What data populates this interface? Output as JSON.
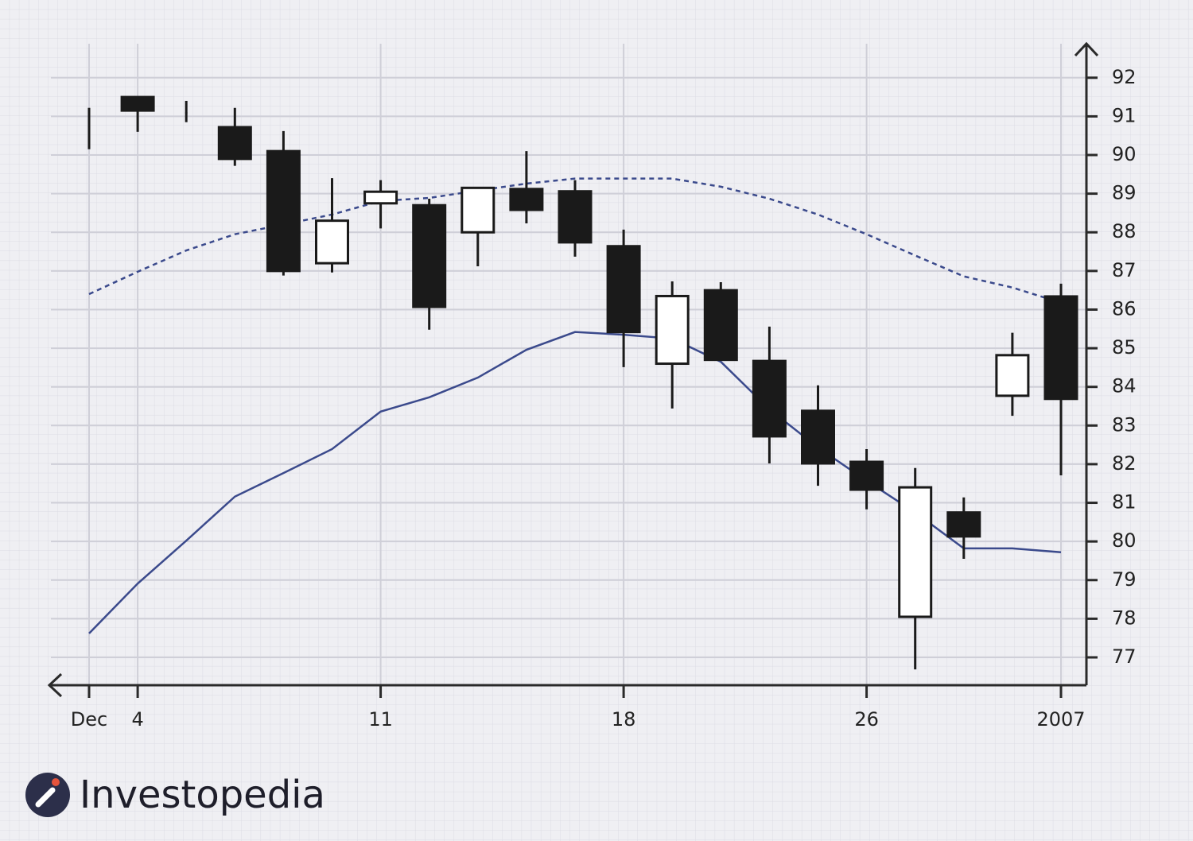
{
  "chart_data": {
    "type": "candlestick",
    "categories": [
      "Dec",
      "4",
      null,
      null,
      null,
      null,
      "11",
      null,
      null,
      null,
      null,
      "18",
      null,
      null,
      null,
      null,
      "26",
      null,
      null,
      null,
      "2007"
    ],
    "open": [
      90.7,
      91.5,
      91.1,
      90.72,
      90.1,
      87.2,
      88.75,
      88.7,
      88.0,
      89.12,
      89.06,
      87.64,
      84.6,
      86.5,
      84.67,
      83.38,
      82.06,
      78.05,
      80.75,
      83.77,
      86.34
    ],
    "high": [
      91.22,
      91.5,
      91.4,
      91.22,
      90.62,
      89.4,
      89.35,
      88.87,
      89.14,
      90.1,
      89.35,
      88.07,
      86.73,
      86.71,
      85.56,
      84.04,
      82.39,
      81.9,
      81.14,
      85.4,
      86.67
    ],
    "low": [
      90.15,
      90.6,
      90.85,
      89.72,
      86.88,
      86.96,
      88.1,
      85.48,
      87.12,
      88.23,
      87.37,
      84.51,
      83.44,
      84.7,
      82.02,
      81.44,
      80.83,
      76.69,
      79.55,
      83.25,
      81.71
    ],
    "close": [
      90.7,
      91.15,
      91.1,
      89.9,
      87.0,
      88.3,
      89.05,
      86.07,
      89.15,
      88.58,
      87.74,
      85.42,
      86.35,
      84.7,
      82.72,
      82.02,
      81.34,
      81.4,
      80.13,
      84.82,
      83.69
    ],
    "up_color": "#ffffff",
    "down_color": "#1a1a1a",
    "overlays": [
      {
        "color": "#3b4a8c",
        "dashed": true,
        "values": [
          86.4,
          86.98,
          87.53,
          87.95,
          88.2,
          88.46,
          88.81,
          88.89,
          89.08,
          89.26,
          89.39,
          89.39,
          89.39,
          89.18,
          88.87,
          88.46,
          87.95,
          87.4,
          86.86,
          86.57,
          86.18
        ]
      },
      {
        "color": "#3b4a8c",
        "dashed": false,
        "values": [
          77.62,
          78.91,
          80.02,
          81.16,
          81.77,
          82.39,
          83.36,
          83.73,
          84.24,
          84.96,
          85.42,
          85.35,
          85.25,
          84.65,
          83.42,
          82.43,
          81.57,
          80.75,
          79.82,
          79.82,
          79.72
        ]
      }
    ],
    "ylim": [
      76.28,
      92.88
    ],
    "yticks": [
      77,
      78,
      79,
      80,
      81,
      82,
      83,
      84,
      85,
      86,
      87,
      88,
      89,
      90,
      91,
      92
    ],
    "grid": true
  },
  "brand": {
    "name": "Investopedia"
  }
}
